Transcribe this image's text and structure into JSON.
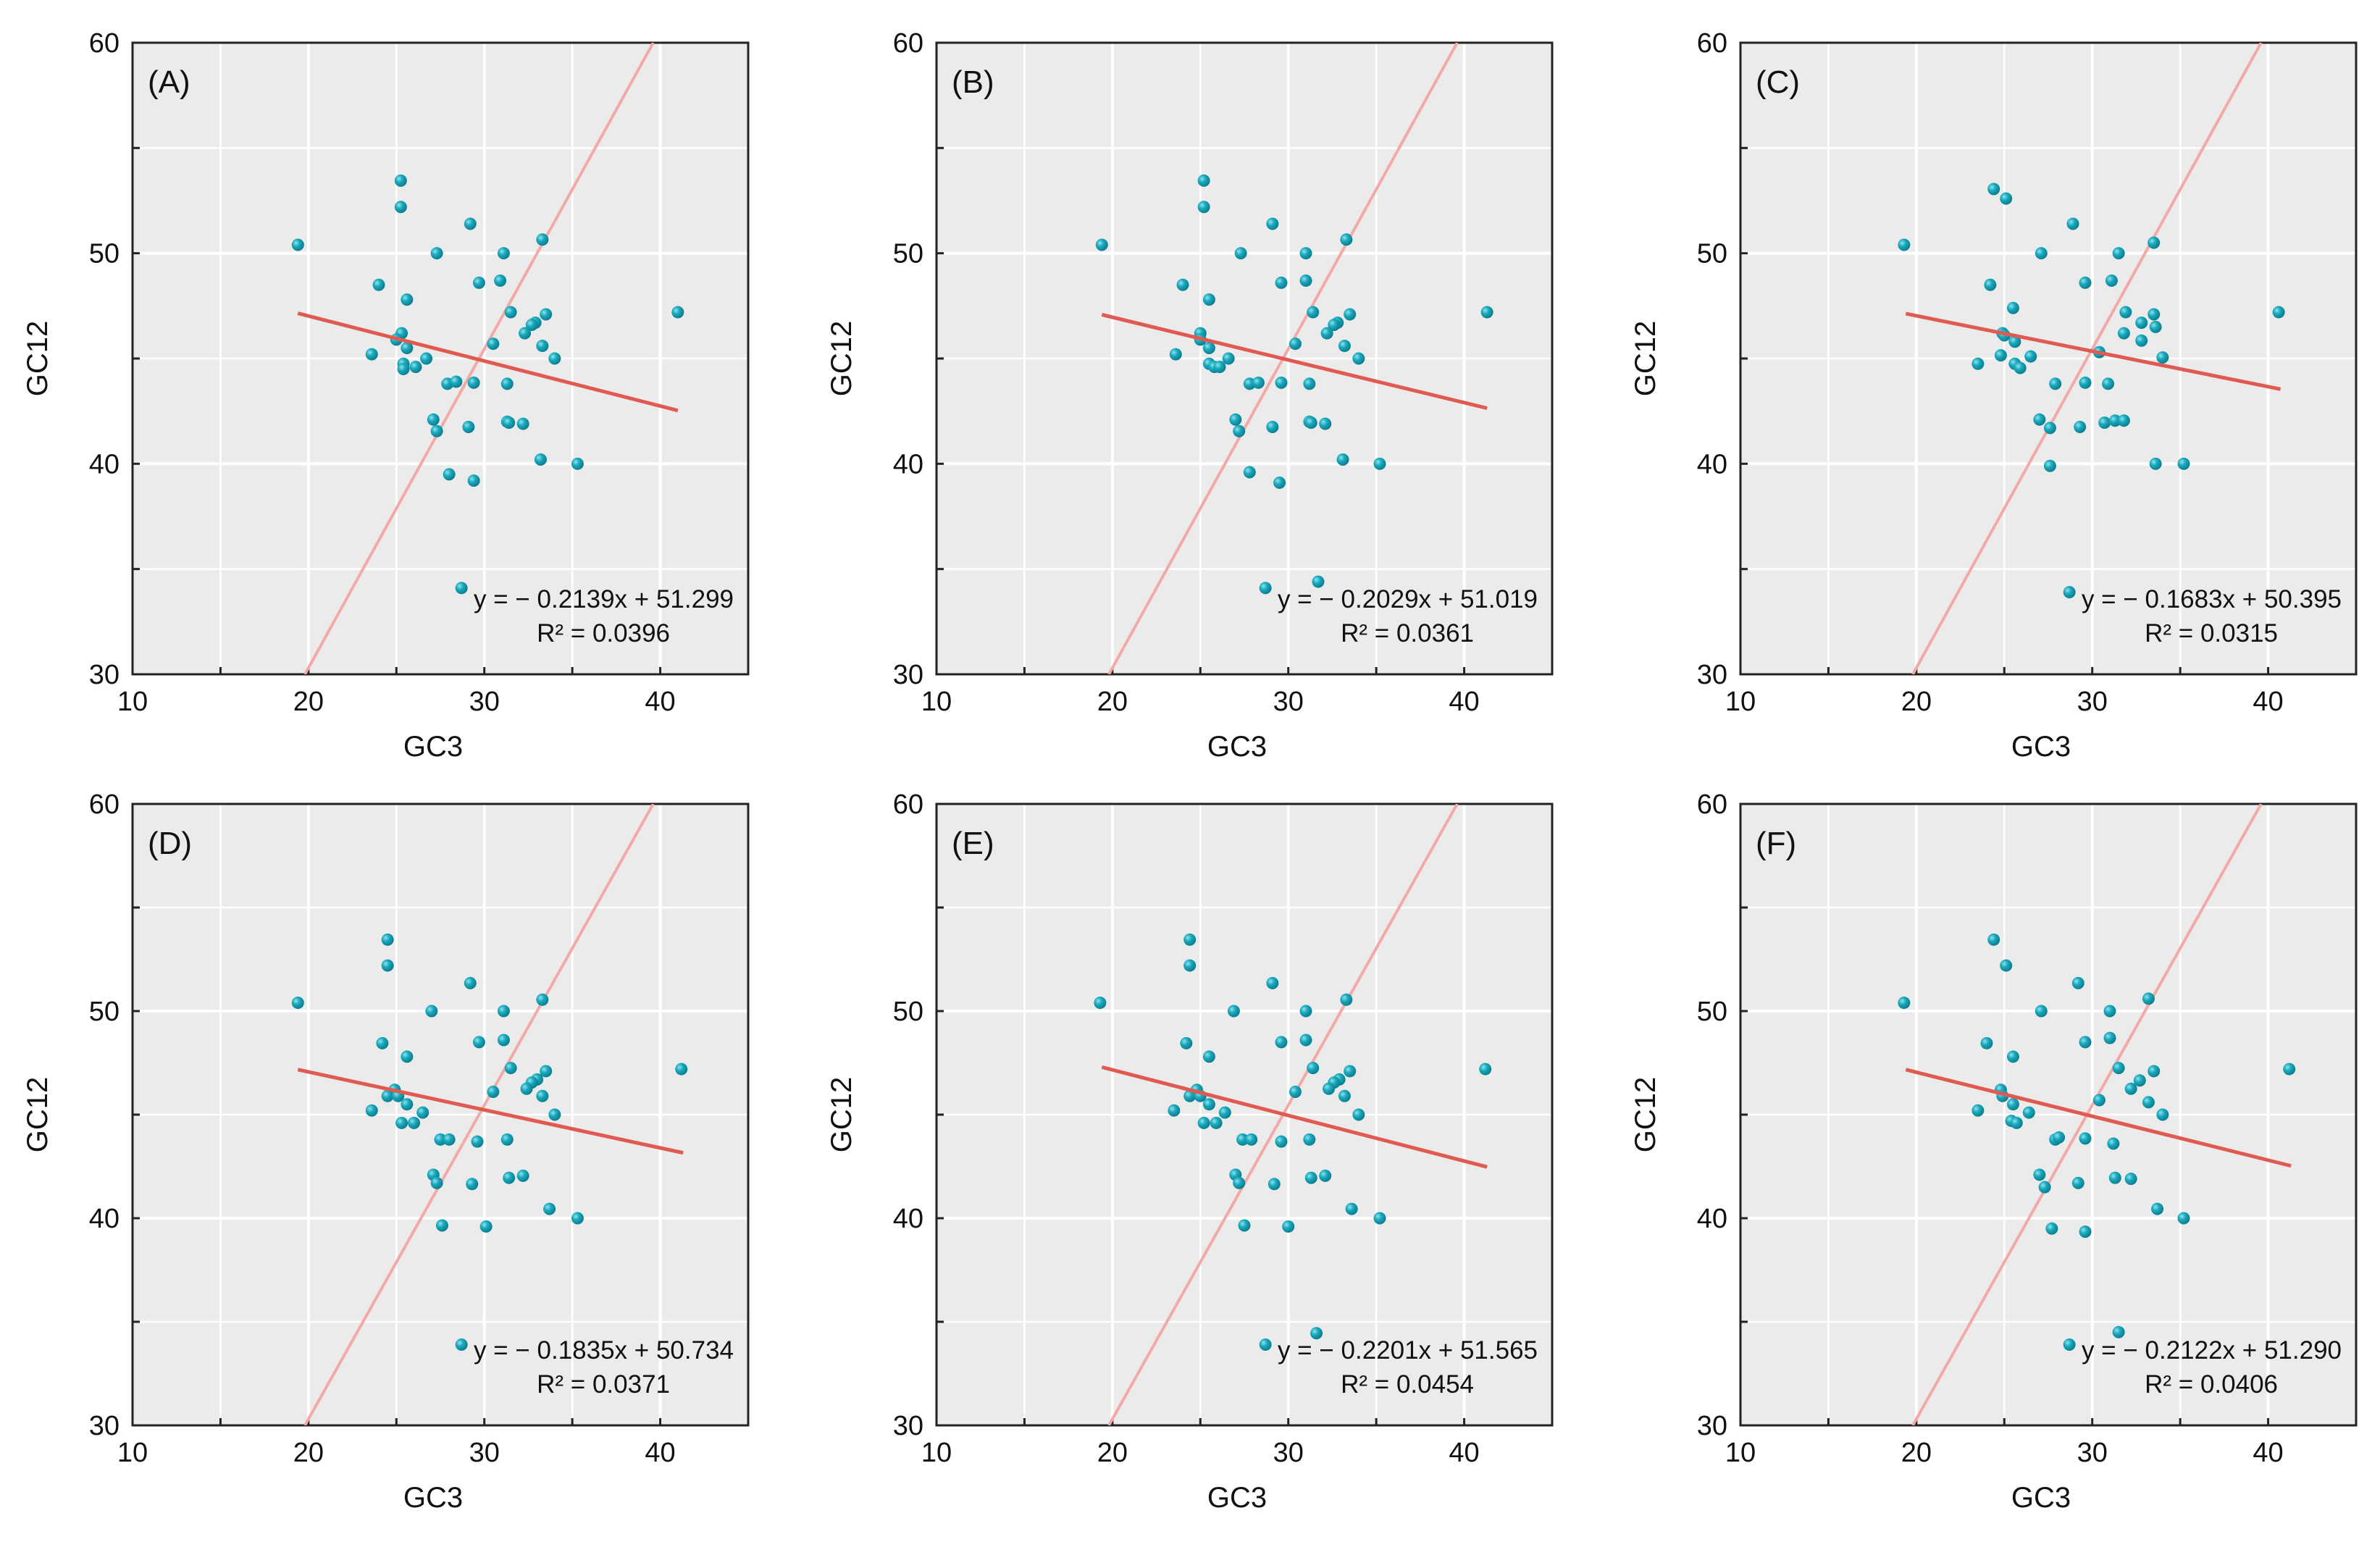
{
  "chart_data": {
    "type": "scatter",
    "xlabel": "GC3",
    "ylabel": "GC12",
    "xlim": [
      10,
      45
    ],
    "ylim": [
      30,
      60
    ],
    "xticks": [
      10,
      20,
      30,
      40
    ],
    "yticks": [
      30,
      40,
      50,
      60
    ],
    "grid": true,
    "colors": {
      "points": "#17a2b8",
      "fit": "#e05a52",
      "reference": "#f2aaa8",
      "background": "#ebebeb"
    },
    "reference_line": [
      [
        19.8,
        30
      ],
      [
        39.6,
        60
      ]
    ],
    "panels": [
      {
        "label": "(A)",
        "equation": "y = − 0.2139x + 51.299",
        "r2": "R² = 0.0396",
        "slope": -0.2139,
        "intercept": 51.299,
        "fit_x": [
          19.4,
          41.0
        ],
        "points": [
          [
            19.4,
            50.4
          ],
          [
            25.25,
            53.45
          ],
          [
            25.25,
            52.2
          ],
          [
            29.2,
            51.4
          ],
          [
            27.3,
            50.0
          ],
          [
            31.1,
            50.0
          ],
          [
            33.3,
            50.65
          ],
          [
            24.0,
            48.5
          ],
          [
            29.7,
            48.6
          ],
          [
            30.9,
            48.7
          ],
          [
            25.6,
            47.8
          ],
          [
            31.5,
            47.2
          ],
          [
            33.5,
            47.1
          ],
          [
            41.0,
            47.2
          ],
          [
            32.9,
            46.7
          ],
          [
            32.7,
            46.6
          ],
          [
            32.3,
            46.2
          ],
          [
            25.3,
            46.2
          ],
          [
            25.0,
            45.9
          ],
          [
            25.6,
            45.5
          ],
          [
            30.5,
            45.7
          ],
          [
            33.3,
            45.6
          ],
          [
            34.0,
            45.0
          ],
          [
            23.6,
            45.2
          ],
          [
            26.7,
            45.0
          ],
          [
            25.4,
            44.75
          ],
          [
            25.4,
            44.5
          ],
          [
            26.1,
            44.6
          ],
          [
            27.9,
            43.8
          ],
          [
            28.4,
            43.9
          ],
          [
            29.4,
            43.85
          ],
          [
            31.3,
            43.8
          ],
          [
            27.1,
            42.1
          ],
          [
            27.3,
            41.55
          ],
          [
            29.1,
            41.75
          ],
          [
            31.3,
            42.0
          ],
          [
            31.4,
            41.95
          ],
          [
            32.2,
            41.9
          ],
          [
            33.2,
            40.2
          ],
          [
            35.3,
            40.0
          ],
          [
            28.0,
            39.5
          ],
          [
            29.4,
            39.2
          ],
          [
            28.7,
            34.1
          ]
        ]
      },
      {
        "label": "(B)",
        "equation": "y = − 0.2029x + 51.019",
        "r2": "R² = 0.0361",
        "slope": -0.2029,
        "intercept": 51.019,
        "fit_x": [
          19.4,
          41.3
        ],
        "points": [
          [
            19.4,
            50.4
          ],
          [
            25.2,
            53.45
          ],
          [
            25.2,
            52.2
          ],
          [
            29.1,
            51.4
          ],
          [
            27.3,
            50.0
          ],
          [
            31.0,
            50.0
          ],
          [
            33.3,
            50.65
          ],
          [
            24.0,
            48.5
          ],
          [
            29.6,
            48.6
          ],
          [
            31.0,
            48.7
          ],
          [
            25.5,
            47.8
          ],
          [
            31.4,
            47.2
          ],
          [
            33.5,
            47.1
          ],
          [
            41.3,
            47.2
          ],
          [
            32.8,
            46.7
          ],
          [
            32.6,
            46.6
          ],
          [
            32.2,
            46.2
          ],
          [
            25.0,
            46.2
          ],
          [
            25.0,
            45.9
          ],
          [
            25.5,
            45.5
          ],
          [
            30.4,
            45.7
          ],
          [
            33.2,
            45.6
          ],
          [
            34.0,
            45.0
          ],
          [
            23.6,
            45.2
          ],
          [
            26.6,
            45.0
          ],
          [
            25.5,
            44.75
          ],
          [
            25.8,
            44.6
          ],
          [
            26.1,
            44.6
          ],
          [
            27.8,
            43.8
          ],
          [
            28.3,
            43.85
          ],
          [
            29.6,
            43.85
          ],
          [
            31.2,
            43.8
          ],
          [
            27.0,
            42.1
          ],
          [
            27.2,
            41.55
          ],
          [
            29.1,
            41.75
          ],
          [
            31.2,
            42.0
          ],
          [
            31.3,
            41.95
          ],
          [
            32.1,
            41.9
          ],
          [
            33.1,
            40.2
          ],
          [
            35.2,
            40.0
          ],
          [
            27.8,
            39.6
          ],
          [
            29.5,
            39.1
          ],
          [
            28.7,
            34.1
          ],
          [
            31.7,
            34.4
          ]
        ]
      },
      {
        "label": "(C)",
        "equation": "y = − 0.1683x + 50.395",
        "r2": "R² = 0.0315",
        "slope": -0.1683,
        "intercept": 50.395,
        "fit_x": [
          19.4,
          40.7
        ],
        "points": [
          [
            19.3,
            50.4
          ],
          [
            24.4,
            53.05
          ],
          [
            25.1,
            52.6
          ],
          [
            28.9,
            51.4
          ],
          [
            27.1,
            50.0
          ],
          [
            31.5,
            50.0
          ],
          [
            33.5,
            50.5
          ],
          [
            24.2,
            48.5
          ],
          [
            29.6,
            48.6
          ],
          [
            31.1,
            48.7
          ],
          [
            25.5,
            47.4
          ],
          [
            31.9,
            47.2
          ],
          [
            33.5,
            47.1
          ],
          [
            40.6,
            47.2
          ],
          [
            32.8,
            46.7
          ],
          [
            33.6,
            46.5
          ],
          [
            31.8,
            46.2
          ],
          [
            24.9,
            46.2
          ],
          [
            25.0,
            46.1
          ],
          [
            25.6,
            45.8
          ],
          [
            32.8,
            45.85
          ],
          [
            30.4,
            45.3
          ],
          [
            34.0,
            45.05
          ],
          [
            26.5,
            45.1
          ],
          [
            24.8,
            45.15
          ],
          [
            23.5,
            44.75
          ],
          [
            25.6,
            44.75
          ],
          [
            25.9,
            44.55
          ],
          [
            27.9,
            43.8
          ],
          [
            29.6,
            43.85
          ],
          [
            30.9,
            43.8
          ],
          [
            27.0,
            42.1
          ],
          [
            27.6,
            41.7
          ],
          [
            29.3,
            41.75
          ],
          [
            30.7,
            41.95
          ],
          [
            31.3,
            42.05
          ],
          [
            31.8,
            42.05
          ],
          [
            27.6,
            39.9
          ],
          [
            33.6,
            40.0
          ],
          [
            35.2,
            40.0
          ],
          [
            28.7,
            33.9
          ]
        ]
      },
      {
        "label": "(D)",
        "equation": "y = − 0.1835x + 50.734",
        "r2": "R² = 0.0371",
        "slope": -0.1835,
        "intercept": 50.734,
        "fit_x": [
          19.4,
          41.3
        ],
        "points": [
          [
            19.4,
            50.4
          ],
          [
            24.5,
            53.45
          ],
          [
            24.5,
            52.2
          ],
          [
            29.2,
            51.35
          ],
          [
            27.0,
            50.0
          ],
          [
            31.1,
            50.0
          ],
          [
            33.3,
            50.55
          ],
          [
            24.2,
            48.45
          ],
          [
            29.7,
            48.5
          ],
          [
            31.1,
            48.6
          ],
          [
            25.6,
            47.8
          ],
          [
            31.5,
            47.25
          ],
          [
            33.5,
            47.1
          ],
          [
            41.2,
            47.2
          ],
          [
            33.0,
            46.7
          ],
          [
            32.7,
            46.55
          ],
          [
            32.4,
            46.25
          ],
          [
            24.9,
            46.2
          ],
          [
            24.5,
            45.9
          ],
          [
            25.1,
            45.9
          ],
          [
            25.6,
            45.5
          ],
          [
            30.5,
            46.1
          ],
          [
            33.3,
            45.9
          ],
          [
            34.0,
            45.0
          ],
          [
            23.6,
            45.2
          ],
          [
            26.5,
            45.1
          ],
          [
            25.3,
            44.6
          ],
          [
            26.0,
            44.6
          ],
          [
            27.5,
            43.8
          ],
          [
            28.0,
            43.8
          ],
          [
            29.6,
            43.7
          ],
          [
            31.3,
            43.8
          ],
          [
            27.1,
            42.1
          ],
          [
            27.3,
            41.7
          ],
          [
            29.3,
            41.65
          ],
          [
            31.4,
            41.95
          ],
          [
            32.2,
            42.05
          ],
          [
            33.7,
            40.45
          ],
          [
            35.3,
            40.0
          ],
          [
            27.6,
            39.65
          ],
          [
            30.1,
            39.6
          ],
          [
            28.7,
            33.9
          ]
        ]
      },
      {
        "label": "(E)",
        "equation": "y = − 0.2201x + 51.565",
        "r2": "R² = 0.0454",
        "slope": -0.2201,
        "intercept": 51.565,
        "fit_x": [
          19.4,
          41.3
        ],
        "points": [
          [
            19.3,
            50.4
          ],
          [
            24.4,
            53.45
          ],
          [
            24.4,
            52.2
          ],
          [
            29.1,
            51.35
          ],
          [
            26.9,
            50.0
          ],
          [
            31.0,
            50.0
          ],
          [
            33.3,
            50.55
          ],
          [
            24.2,
            48.45
          ],
          [
            29.6,
            48.5
          ],
          [
            31.0,
            48.6
          ],
          [
            25.5,
            47.8
          ],
          [
            31.4,
            47.25
          ],
          [
            33.5,
            47.1
          ],
          [
            41.2,
            47.2
          ],
          [
            32.9,
            46.7
          ],
          [
            32.6,
            46.55
          ],
          [
            32.3,
            46.25
          ],
          [
            24.8,
            46.2
          ],
          [
            24.4,
            45.9
          ],
          [
            25.0,
            45.9
          ],
          [
            25.5,
            45.5
          ],
          [
            30.4,
            46.1
          ],
          [
            33.2,
            45.9
          ],
          [
            34.0,
            45.0
          ],
          [
            23.5,
            45.2
          ],
          [
            26.4,
            45.1
          ],
          [
            25.2,
            44.6
          ],
          [
            25.9,
            44.6
          ],
          [
            27.4,
            43.8
          ],
          [
            27.9,
            43.8
          ],
          [
            29.6,
            43.7
          ],
          [
            31.2,
            43.8
          ],
          [
            27.0,
            42.1
          ],
          [
            27.2,
            41.7
          ],
          [
            29.2,
            41.65
          ],
          [
            31.3,
            41.95
          ],
          [
            32.1,
            42.05
          ],
          [
            33.6,
            40.45
          ],
          [
            35.2,
            40.0
          ],
          [
            27.5,
            39.65
          ],
          [
            30.0,
            39.6
          ],
          [
            28.7,
            33.9
          ],
          [
            31.6,
            34.45
          ]
        ]
      },
      {
        "label": "(F)",
        "equation": "y = − 0.2122x + 51.290",
        "r2": "R² = 0.0406",
        "slope": -0.2122,
        "intercept": 51.29,
        "fit_x": [
          19.4,
          41.3
        ],
        "points": [
          [
            19.3,
            50.4
          ],
          [
            24.4,
            53.45
          ],
          [
            25.1,
            52.2
          ],
          [
            29.2,
            51.35
          ],
          [
            27.1,
            50.0
          ],
          [
            31.0,
            50.0
          ],
          [
            33.2,
            50.6
          ],
          [
            24.0,
            48.45
          ],
          [
            29.6,
            48.5
          ],
          [
            31.0,
            48.7
          ],
          [
            25.5,
            47.8
          ],
          [
            31.5,
            47.25
          ],
          [
            33.5,
            47.1
          ],
          [
            41.2,
            47.2
          ],
          [
            32.7,
            46.65
          ],
          [
            32.2,
            46.25
          ],
          [
            24.8,
            46.2
          ],
          [
            24.9,
            45.9
          ],
          [
            25.5,
            45.5
          ],
          [
            30.4,
            45.7
          ],
          [
            33.2,
            45.6
          ],
          [
            34.0,
            45.0
          ],
          [
            23.5,
            45.2
          ],
          [
            26.4,
            45.1
          ],
          [
            25.4,
            44.7
          ],
          [
            25.7,
            44.6
          ],
          [
            27.9,
            43.8
          ],
          [
            28.1,
            43.9
          ],
          [
            29.6,
            43.85
          ],
          [
            31.2,
            43.6
          ],
          [
            27.0,
            42.1
          ],
          [
            27.3,
            41.5
          ],
          [
            29.2,
            41.7
          ],
          [
            31.3,
            41.95
          ],
          [
            32.2,
            41.9
          ],
          [
            33.7,
            40.45
          ],
          [
            35.2,
            40.0
          ],
          [
            27.7,
            39.5
          ],
          [
            29.6,
            39.35
          ],
          [
            28.7,
            33.9
          ],
          [
            31.5,
            34.5
          ]
        ]
      }
    ]
  }
}
